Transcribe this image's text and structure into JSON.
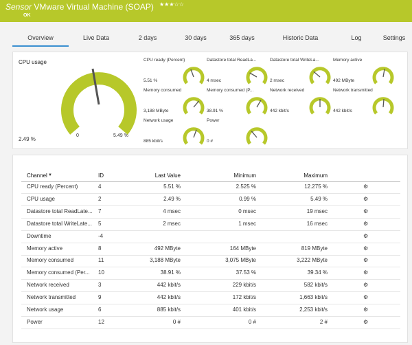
{
  "header": {
    "title_prefix": "Sensor",
    "title": "VMware Virtual Machine (SOAP)",
    "status": "OK"
  },
  "tabs": [
    "Overview",
    "Live Data",
    "2  days",
    "30  days",
    "365  days",
    "Historic Data",
    "Log",
    "Settings"
  ],
  "gauges": {
    "main": {
      "label": "CPU usage",
      "value": "2.49 %",
      "min": "0",
      "max": "5.49 %"
    },
    "items": [
      {
        "label": "CPU ready (Percent)",
        "value": "5.51 %"
      },
      {
        "label": "Datastore total ReadLa...",
        "value": "4 msec"
      },
      {
        "label": "Datastore total WriteLa...",
        "value": "2 msec"
      },
      {
        "label": "Memory active",
        "value": "492 MByte"
      },
      {
        "label": "Memory consumed",
        "value": "3,188 MByte"
      },
      {
        "label": "Memory consumed (P...",
        "value": "38.91 %"
      },
      {
        "label": "Network received",
        "value": "442 kbit/s"
      },
      {
        "label": "Network transmitted",
        "value": "442 kbit/s"
      },
      {
        "label": "Network usage",
        "value": "885 kbit/s"
      },
      {
        "label": "Power",
        "value": "0 #"
      }
    ]
  },
  "table": {
    "columns": [
      "Channel",
      "ID",
      "Last Value",
      "Minimum",
      "Maximum"
    ],
    "rows": [
      [
        "CPU ready (Percent)",
        "4",
        "5.51 %",
        "2.525 %",
        "12.275 %"
      ],
      [
        "CPU usage",
        "2",
        "2.49 %",
        "0.99 %",
        "5.49 %"
      ],
      [
        "Datastore total ReadLate...",
        "7",
        "4 msec",
        "0 msec",
        "19 msec"
      ],
      [
        "Datastore total WriteLate...",
        "5",
        "2 msec",
        "1 msec",
        "16 msec"
      ],
      [
        "Downtime",
        "-4",
        "",
        "",
        ""
      ],
      [
        "Memory active",
        "8",
        "492 MByte",
        "164 MByte",
        "819 MByte"
      ],
      [
        "Memory consumed",
        "11",
        "3,188 MByte",
        "3,075 MByte",
        "3,222 MByte"
      ],
      [
        "Memory consumed (Per...",
        "10",
        "38.91 %",
        "37.53 %",
        "39.34 %"
      ],
      [
        "Network received",
        "3",
        "442 kbit/s",
        "229 kbit/s",
        "582 kbit/s"
      ],
      [
        "Network transmitted",
        "9",
        "442 kbit/s",
        "172 kbit/s",
        "1,663 kbit/s"
      ],
      [
        "Network usage",
        "6",
        "885 kbit/s",
        "401 kbit/s",
        "2,253 kbit/s"
      ],
      [
        "Power",
        "12",
        "0 #",
        "0 #",
        "2 #"
      ]
    ]
  }
}
